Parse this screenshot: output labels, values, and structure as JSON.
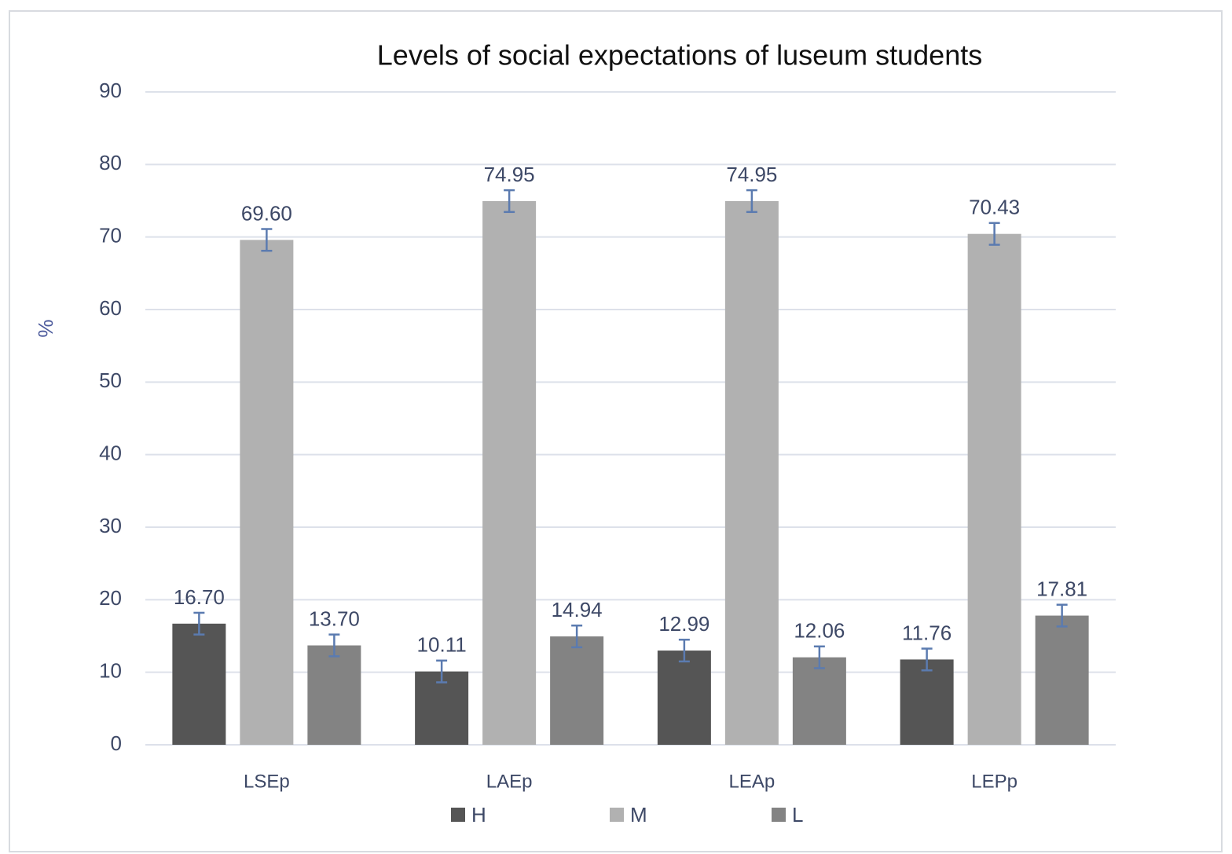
{
  "chart_data": {
    "type": "bar",
    "title": "Levels of social expectations of luseum students",
    "y_label": "%",
    "categories": [
      "LSEp",
      "LAEp",
      "LEAp",
      "LEPp"
    ],
    "series": [
      {
        "name": "H",
        "color": "#555555",
        "values": [
          16.7,
          10.11,
          12.99,
          11.76
        ],
        "value_labels": [
          "16.70",
          "10.11",
          "12.99",
          "11.76"
        ],
        "errors": [
          1.5,
          1.5,
          1.5,
          1.5
        ]
      },
      {
        "name": "M",
        "color": "#b1b1b1",
        "values": [
          69.6,
          74.95,
          74.95,
          70.43
        ],
        "value_labels": [
          "69.60",
          "74.95",
          "74.95",
          "70.43"
        ],
        "errors": [
          1.5,
          1.5,
          1.5,
          1.5
        ]
      },
      {
        "name": "L",
        "color": "#838383",
        "values": [
          13.7,
          14.94,
          12.06,
          17.81
        ],
        "value_labels": [
          "13.70",
          "14.94",
          "12.06",
          "17.81"
        ],
        "errors": [
          1.5,
          1.5,
          1.5,
          1.5
        ]
      }
    ],
    "error_color": "#5b7bb0",
    "ylim": [
      0,
      90
    ],
    "yticks": [
      0,
      10,
      20,
      30,
      40,
      50,
      60,
      70,
      80,
      90
    ],
    "grid": true,
    "legend": "bottom"
  }
}
